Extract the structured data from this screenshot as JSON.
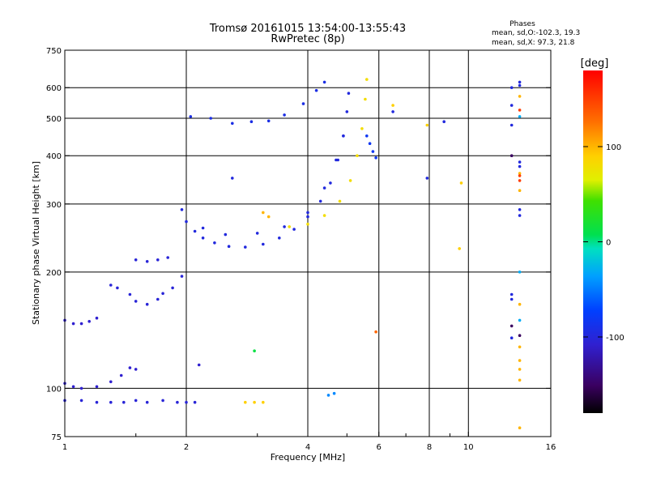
{
  "chart_data": {
    "type": "scatter",
    "title": "Tromsø 20161015 13:54:00-13:55:43",
    "subtitle": "RwPretec (8p)",
    "xlabel": "Frequency [MHz]",
    "ylabel": "Stationary phase Virtual Height [km]",
    "x_scale": "log",
    "y_scale": "log",
    "xlim": [
      1,
      16
    ],
    "ylim": [
      75,
      750
    ],
    "x_ticks": [
      1,
      2,
      4,
      6,
      8,
      10,
      16
    ],
    "x_tick_labels": [
      "1",
      "2",
      "4",
      "6",
      "8",
      "10",
      "16"
    ],
    "x_minor_ticks": [
      1.5,
      3,
      5,
      7,
      9
    ],
    "x_gridlines": [
      2,
      4,
      6,
      8,
      10
    ],
    "y_ticks": [
      75,
      100,
      200,
      300,
      400,
      500,
      600,
      750
    ],
    "y_tick_labels": [
      "75",
      "100",
      "200",
      "300",
      "400",
      "500",
      "600",
      "750"
    ],
    "y_gridlines": [
      100,
      200,
      300,
      400,
      500,
      600
    ],
    "grid": true,
    "stats": {
      "heading": "Phases",
      "line_o": "mean, sd,O:-102.3, 19.3",
      "line_x": "mean, sd,X:  97.3, 21.8"
    },
    "colorbar": {
      "label": "[deg]",
      "range": [
        -180,
        180
      ],
      "ticks": [
        100,
        0,
        -100
      ],
      "tick_labels": [
        "100",
        "0",
        "-100"
      ],
      "placement": "right"
    },
    "traces": [
      {
        "phase": -105,
        "points": [
          [
            1.0,
            93
          ],
          [
            1.1,
            93
          ],
          [
            1.2,
            92
          ],
          [
            1.3,
            92
          ],
          [
            1.4,
            92
          ],
          [
            1.5,
            93
          ],
          [
            1.6,
            92
          ],
          [
            1.75,
            93
          ],
          [
            1.9,
            92
          ],
          [
            2.0,
            92
          ],
          [
            2.1,
            92
          ]
        ]
      },
      {
        "phase": -110,
        "points": [
          [
            1.0,
            103
          ],
          [
            1.05,
            101
          ],
          [
            1.1,
            100
          ],
          [
            1.2,
            101
          ],
          [
            1.3,
            104
          ],
          [
            1.38,
            108
          ],
          [
            1.45,
            113
          ],
          [
            1.5,
            112
          ]
        ]
      },
      {
        "phase": -110,
        "points": [
          [
            1.0,
            150
          ],
          [
            1.05,
            147
          ],
          [
            1.1,
            147
          ],
          [
            1.15,
            149
          ],
          [
            1.2,
            152
          ]
        ]
      },
      {
        "phase": -105,
        "points": [
          [
            1.3,
            185
          ],
          [
            1.35,
            182
          ],
          [
            1.45,
            175
          ],
          [
            1.5,
            168
          ],
          [
            1.6,
            165
          ],
          [
            1.7,
            170
          ],
          [
            1.75,
            176
          ],
          [
            1.85,
            182
          ],
          [
            1.95,
            195
          ]
        ]
      },
      {
        "phase": -105,
        "points": [
          [
            1.5,
            215
          ],
          [
            1.6,
            213
          ],
          [
            1.7,
            215
          ],
          [
            1.8,
            218
          ]
        ]
      },
      {
        "phase": -100,
        "points": [
          [
            1.95,
            290
          ],
          [
            2.0,
            270
          ],
          [
            2.1,
            255
          ],
          [
            2.2,
            245
          ],
          [
            2.35,
            238
          ],
          [
            2.55,
            233
          ],
          [
            2.8,
            232
          ],
          [
            3.1,
            236
          ],
          [
            3.4,
            245
          ],
          [
            3.7,
            258
          ],
          [
            4.0,
            278
          ],
          [
            4.3,
            305
          ],
          [
            4.55,
            340
          ],
          [
            4.75,
            390
          ],
          [
            4.9,
            450
          ],
          [
            5.0,
            520
          ],
          [
            5.05,
            580
          ]
        ]
      },
      {
        "phase": -100,
        "points": [
          [
            2.2,
            260
          ],
          [
            2.5,
            250
          ],
          [
            3.0,
            252
          ],
          [
            3.5,
            262
          ],
          [
            4.0,
            285
          ],
          [
            4.4,
            330
          ],
          [
            4.7,
            390
          ],
          [
            4.9,
            450
          ]
        ]
      },
      {
        "phase": 80,
        "points": [
          [
            3.6,
            262
          ],
          [
            4.0,
            266
          ],
          [
            4.4,
            280
          ],
          [
            4.8,
            305
          ],
          [
            5.1,
            345
          ],
          [
            5.3,
            400
          ],
          [
            5.45,
            470
          ],
          [
            5.55,
            560
          ],
          [
            5.6,
            630
          ]
        ]
      },
      {
        "phase": -85,
        "points": [
          [
            5.6,
            450
          ],
          [
            5.7,
            430
          ],
          [
            5.8,
            410
          ],
          [
            5.9,
            395
          ]
        ]
      },
      {
        "phase": -95,
        "points": [
          [
            2.05,
            505
          ],
          [
            2.3,
            500
          ],
          [
            2.6,
            485
          ],
          [
            2.9,
            490
          ],
          [
            3.2,
            492
          ],
          [
            3.5,
            510
          ],
          [
            3.9,
            545
          ],
          [
            4.2,
            590
          ],
          [
            4.4,
            620
          ]
        ]
      },
      {
        "phase": 90,
        "points": [
          [
            2.8,
            92
          ],
          [
            2.95,
            92
          ],
          [
            3.1,
            92
          ]
        ]
      },
      {
        "phase": -45,
        "points": [
          [
            4.5,
            96
          ],
          [
            4.65,
            97
          ]
        ]
      },
      {
        "phase": 100,
        "points": [
          [
            3.1,
            285
          ],
          [
            3.2,
            278
          ]
        ]
      },
      {
        "phase": 15,
        "points": [
          [
            2.95,
            125
          ]
        ]
      },
      {
        "phase": -110,
        "points": [
          [
            2.15,
            115
          ]
        ]
      },
      {
        "phase": 130,
        "points": [
          [
            5.9,
            140
          ]
        ]
      },
      {
        "phase": 90,
        "points": [
          [
            6.5,
            540
          ],
          [
            7.9,
            480
          ],
          [
            9.6,
            340
          ],
          [
            9.5,
            230
          ]
        ]
      },
      {
        "phase": -100,
        "points": [
          [
            6.5,
            520
          ],
          [
            8.7,
            490
          ],
          [
            7.9,
            350
          ],
          [
            2.6,
            350
          ]
        ]
      },
      {
        "phase": -100,
        "points": [
          [
            12.8,
            600
          ],
          [
            12.8,
            540
          ],
          [
            12.8,
            480
          ],
          [
            12.8,
            175
          ],
          [
            12.8,
            170
          ],
          [
            12.8,
            135
          ],
          [
            13.4,
            620
          ],
          [
            13.4,
            608
          ],
          [
            13.4,
            385
          ],
          [
            13.4,
            375
          ],
          [
            13.4,
            290
          ],
          [
            13.4,
            280
          ]
        ]
      },
      {
        "phase": 100,
        "points": [
          [
            13.4,
            570
          ],
          [
            13.4,
            360
          ],
          [
            13.4,
            325
          ],
          [
            13.4,
            165
          ],
          [
            13.4,
            128
          ],
          [
            13.4,
            118
          ],
          [
            13.4,
            112
          ],
          [
            13.4,
            105
          ],
          [
            13.4,
            79
          ]
        ]
      },
      {
        "phase": 150,
        "points": [
          [
            13.4,
            525
          ],
          [
            13.4,
            355
          ],
          [
            13.4,
            345
          ]
        ]
      },
      {
        "phase": -30,
        "points": [
          [
            13.4,
            505
          ],
          [
            13.4,
            200
          ],
          [
            13.4,
            150
          ]
        ]
      },
      {
        "phase": -150,
        "points": [
          [
            12.8,
            145
          ],
          [
            13.4,
            137
          ],
          [
            12.8,
            400
          ]
        ]
      }
    ]
  }
}
